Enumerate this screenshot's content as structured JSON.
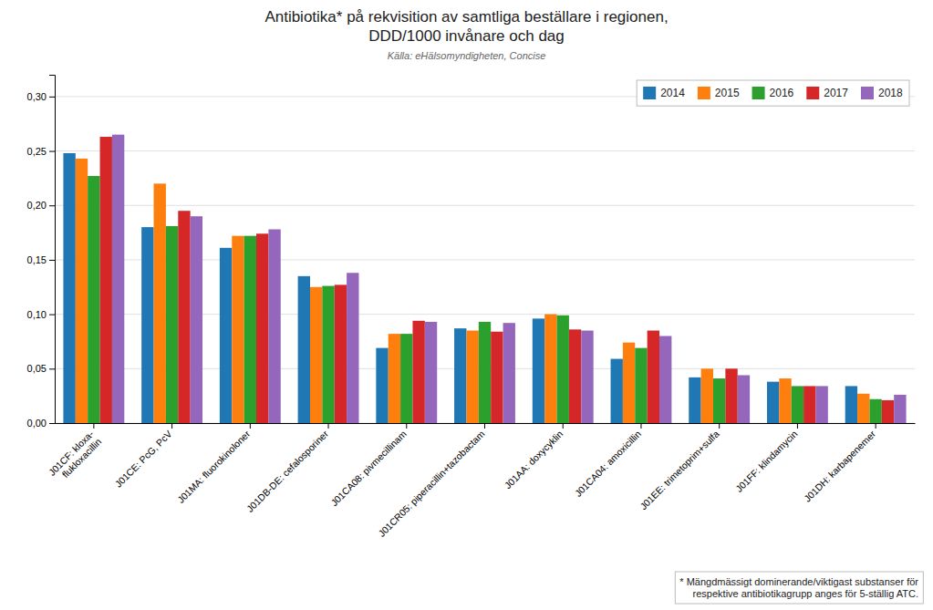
{
  "chart_data": {
    "type": "bar",
    "title": "Antibiotika* på rekvisition av samtliga beställare i regionen,\nDDD/1000 invånare och dag",
    "subtitle": "Källa: eHälsomyndigheten, Concise",
    "annotations": [
      "* Mängdmässigt dominerande/viktigast substanser för\nrespektive antibiotikagrupp anges för 5-ställig ATC."
    ],
    "categories": [
      "J01CF: kloxa-\nflukloxacillin",
      "J01CE: PcG, PcV",
      "J01MA: fluorokinoloner",
      "J01DB-DE: cefalosporiner",
      "J01CA08: pivmecillinam",
      "J01CR05: piperacillin+tazobactam",
      "J01AA: doxycyklin",
      "J01CA04: amoxicillin",
      "J01EE: trimetoprim+sulfa",
      "J01FF: klindamycin",
      "J01DH: karbapenemer"
    ],
    "series": [
      {
        "name": "2014",
        "values": [
          0.248,
          0.18,
          0.161,
          0.135,
          0.069,
          0.087,
          0.096,
          0.059,
          0.042,
          0.038,
          0.034
        ]
      },
      {
        "name": "2015",
        "values": [
          0.243,
          0.22,
          0.172,
          0.125,
          0.082,
          0.085,
          0.1,
          0.074,
          0.05,
          0.041,
          0.027
        ]
      },
      {
        "name": "2016",
        "values": [
          0.227,
          0.181,
          0.172,
          0.126,
          0.082,
          0.093,
          0.099,
          0.069,
          0.041,
          0.034,
          0.022
        ]
      },
      {
        "name": "2017",
        "values": [
          0.263,
          0.195,
          0.174,
          0.127,
          0.094,
          0.084,
          0.086,
          0.085,
          0.05,
          0.034,
          0.021
        ]
      },
      {
        "name": "2018",
        "values": [
          0.265,
          0.19,
          0.178,
          0.138,
          0.093,
          0.092,
          0.085,
          0.08,
          0.044,
          0.034,
          0.026
        ]
      }
    ],
    "ylim": [
      0,
      0.32
    ],
    "yticks": [
      {
        "value": 0.0,
        "label": "0,00"
      },
      {
        "value": 0.05,
        "label": "0,05"
      },
      {
        "value": 0.1,
        "label": "0,10"
      },
      {
        "value": 0.15,
        "label": "0,15"
      },
      {
        "value": 0.2,
        "label": "0,20"
      },
      {
        "value": 0.25,
        "label": "0,25"
      },
      {
        "value": 0.3,
        "label": "0,30"
      }
    ],
    "grid": true,
    "legend": "upper right"
  }
}
